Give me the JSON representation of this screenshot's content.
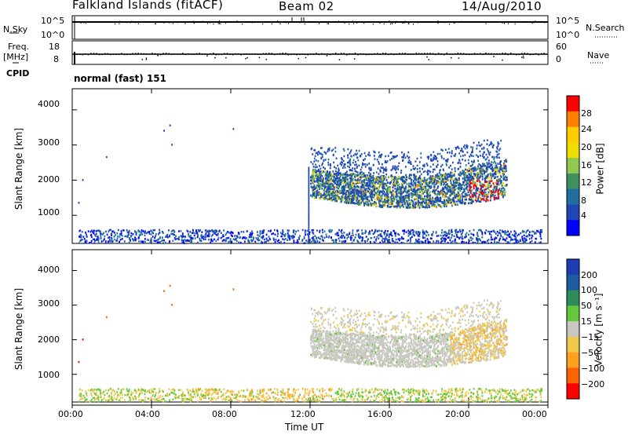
{
  "header": {
    "title": "Falkland Islands (fitACF)",
    "beam": "Beam 02",
    "date": "14/Aug/2010"
  },
  "top_panels": {
    "nsky_label": "N.Sky",
    "nsearch_label": "N.Search",
    "nsky_ticks": [
      "10^5",
      "10^0"
    ],
    "nsearch_ticks": [
      "10^5",
      "10^0"
    ],
    "freq_label_1": "Freq.",
    "freq_label_2": "[MHz]",
    "freq_ticks": [
      "18",
      "8"
    ],
    "nave_label": "Nave",
    "nave_ticks": [
      "60",
      "0"
    ],
    "cpid_label": "CPID",
    "cpid_value": "normal (fast) 151"
  },
  "chart_data": [
    {
      "type": "heatmap",
      "name": "power",
      "ylabel": "Slant Range [km]",
      "xlabel": "Time UT",
      "ylim": [
        200,
        4600
      ],
      "yticks": [
        "4000",
        "3000",
        "2000",
        "1000"
      ],
      "xticks": [
        "00:00",
        "04:00",
        "08:00",
        "12:00",
        "16:00",
        "20:00",
        "00:00"
      ],
      "colorbar": {
        "label": "Power [dB]",
        "ticks": [
          "28",
          "24",
          "20",
          "16",
          "12",
          "8",
          "4"
        ],
        "colors": [
          "#ff0000",
          "#ff7f00",
          "#ffcc00",
          "#f0dc00",
          "#90c850",
          "#409060",
          "#206ea0",
          "#1e46b4",
          "#0000ff"
        ]
      },
      "regions": [
        {
          "time_start_h": 11.9,
          "time_end_h": 22.0,
          "range_min_km": 1000,
          "range_max_km": 3000,
          "dominant_db": 8
        },
        {
          "time_start_h": 0.0,
          "time_end_h": 24.0,
          "range_min_km": 200,
          "range_max_km": 400,
          "dominant_db": 4
        }
      ]
    },
    {
      "type": "heatmap",
      "name": "velocity",
      "ylabel": "Slant Range [km]",
      "xlabel": "Time UT",
      "ylim": [
        200,
        4600
      ],
      "yticks": [
        "4000",
        "3000",
        "2000",
        "1000"
      ],
      "xticks": [
        "00:00",
        "04:00",
        "08:00",
        "12:00",
        "16:00",
        "20:00",
        "00:00"
      ],
      "colorbar": {
        "label": "Velocity [m s⁻¹]",
        "ticks": [
          "200",
          "100",
          "50",
          "15",
          "−15",
          "−50",
          "−100",
          "−200"
        ],
        "colors": [
          "#1e3cb4",
          "#1e5aa0",
          "#2d8c5a",
          "#64c83c",
          "#c8c8c0",
          "#f0c84b",
          "#ffa01e",
          "#ff6400",
          "#ff0000"
        ]
      },
      "regions": [
        {
          "time_start_h": 11.9,
          "time_end_h": 22.0,
          "range_min_km": 1000,
          "range_max_km": 3000,
          "dominant_ms": 0
        },
        {
          "time_start_h": 0.0,
          "time_end_h": 24.0,
          "range_min_km": 200,
          "range_max_km": 400,
          "dominant_ms": -30
        }
      ]
    }
  ],
  "axis": {
    "xlabel": "Time UT",
    "xticks": [
      "00:00",
      "04:00",
      "08:00",
      "12:00",
      "16:00",
      "20:00",
      "00:00"
    ]
  }
}
